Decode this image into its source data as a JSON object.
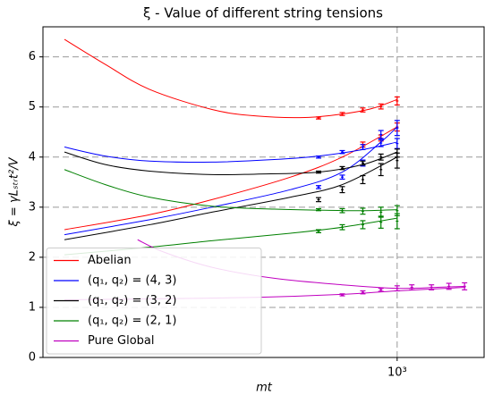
{
  "chart_data": {
    "type": "line",
    "title": "ξ - Value of different string tensions",
    "x_label": "mt",
    "y_label": "ξ = γLₛₜᵣt²/V",
    "xscale": "log",
    "xlim": [
      100,
      1760
    ],
    "xticks": [
      {
        "value": 1000,
        "label": "10³"
      }
    ],
    "ylim": [
      0,
      6.6
    ],
    "yticks": [
      0,
      1,
      2,
      3,
      4,
      5,
      6
    ],
    "grid": true,
    "legend": "lower left",
    "series": [
      {
        "name": "Abelian",
        "color": "#ff0000",
        "x": [
          115,
          150,
          200,
          300,
          400,
          550,
          700,
          850,
          1000
        ],
        "values": [
          6.35,
          5.85,
          5.35,
          4.95,
          4.82,
          4.79,
          4.86,
          4.97,
          5.15
        ]
      },
      {
        "color": "#ff0000",
        "x": [
          115,
          200,
          300,
          500,
          700,
          1000
        ],
        "values": [
          2.55,
          2.85,
          3.15,
          3.6,
          4.0,
          4.6
        ]
      },
      {
        "color": "#ff0000",
        "x": [
          600,
          700,
          800,
          900,
          1000
        ],
        "values": [
          4.78,
          4.86,
          4.94,
          5.01,
          5.12
        ],
        "errors": [
          0.02,
          0.03,
          0.04,
          0.05,
          0.08
        ]
      },
      {
        "color": "#ff0000",
        "x": [
          800,
          900,
          1000
        ],
        "values": [
          4.25,
          4.38,
          4.6
        ],
        "errors": [
          0.05,
          0.06,
          0.08
        ]
      },
      {
        "name": "(q₁, q₂) = (4, 3)",
        "color": "#0000ff",
        "x": [
          115,
          150,
          200,
          300,
          450,
          600,
          800,
          1000
        ],
        "values": [
          4.2,
          4.02,
          3.92,
          3.9,
          3.95,
          4.02,
          4.15,
          4.3
        ]
      },
      {
        "color": "#0000ff",
        "x": [
          115,
          200,
          300,
          500,
          700,
          900,
          1000
        ],
        "values": [
          2.45,
          2.75,
          3.0,
          3.35,
          3.7,
          4.3,
          4.6
        ]
      },
      {
        "color": "#0000ff",
        "x": [
          600,
          700,
          800,
          900,
          1000
        ],
        "values": [
          4.0,
          4.1,
          4.2,
          4.28,
          4.27
        ],
        "errors": [
          0.02,
          0.03,
          0.05,
          0.07,
          0.1
        ]
      },
      {
        "color": "#0000ff",
        "x": [
          600,
          700,
          800,
          900,
          1000
        ],
        "values": [
          3.4,
          3.6,
          3.88,
          4.45,
          4.58
        ],
        "errors": [
          0.03,
          0.04,
          0.06,
          0.08,
          0.15
        ]
      },
      {
        "name": "(q₁, q₂) = (3, 2)",
        "color": "#000000",
        "x": [
          115,
          150,
          200,
          300,
          400,
          600,
          800,
          1000
        ],
        "values": [
          4.1,
          3.85,
          3.72,
          3.65,
          3.66,
          3.7,
          3.85,
          4.1
        ]
      },
      {
        "color": "#000000",
        "x": [
          115,
          200,
          300,
          500,
          700,
          1000
        ],
        "values": [
          2.35,
          2.65,
          2.9,
          3.2,
          3.45,
          4.0
        ]
      },
      {
        "color": "#000000",
        "x": [
          600,
          700,
          800,
          900,
          1000
        ],
        "values": [
          3.7,
          3.78,
          3.88,
          4.0,
          4.08
        ],
        "errors": [
          0.02,
          0.03,
          0.04,
          0.06,
          0.08
        ]
      },
      {
        "color": "#000000",
        "x": [
          600,
          700,
          800,
          900,
          1000
        ],
        "values": [
          3.15,
          3.35,
          3.55,
          3.75,
          3.93
        ],
        "errors": [
          0.04,
          0.06,
          0.08,
          0.12,
          0.15
        ]
      },
      {
        "name": "(q₁, q₂) = (2, 1)",
        "color": "#008000",
        "x": [
          115,
          150,
          200,
          300,
          450,
          600,
          800,
          1000
        ],
        "values": [
          3.75,
          3.45,
          3.2,
          3.02,
          2.96,
          2.94,
          2.93,
          2.95
        ]
      },
      {
        "color": "#008000",
        "x": [
          115,
          200,
          300,
          500,
          700,
          1000
        ],
        "values": [
          2.05,
          2.2,
          2.33,
          2.48,
          2.6,
          2.78
        ]
      },
      {
        "color": "#008000",
        "x": [
          600,
          700,
          800,
          900,
          1000
        ],
        "values": [
          2.95,
          2.93,
          2.92,
          2.9,
          2.93
        ],
        "errors": [
          0.02,
          0.04,
          0.06,
          0.1,
          0.1
        ]
      },
      {
        "color": "#008000",
        "x": [
          600,
          700,
          800,
          900,
          1000
        ],
        "values": [
          2.52,
          2.6,
          2.65,
          2.7,
          2.72
        ],
        "errors": [
          0.03,
          0.05,
          0.08,
          0.12,
          0.15
        ]
      },
      {
        "name": "Pure Global",
        "color": "#c000c0",
        "x": [
          185,
          220,
          300,
          450,
          700,
          1000,
          1300,
          1560
        ],
        "values": [
          2.35,
          2.1,
          1.8,
          1.58,
          1.45,
          1.38,
          1.4,
          1.42
        ]
      },
      {
        "color": "#c000c0",
        "x": [
          115,
          200,
          400,
          700,
          1000,
          1560
        ],
        "values": [
          1.15,
          1.17,
          1.2,
          1.26,
          1.33,
          1.4
        ]
      },
      {
        "color": "#c000c0",
        "x": [
          700,
          800,
          900,
          1000,
          1100,
          1250,
          1400,
          1550
        ],
        "values": [
          1.25,
          1.3,
          1.35,
          1.38,
          1.4,
          1.4,
          1.42,
          1.42
        ],
        "errors": [
          0.02,
          0.03,
          0.03,
          0.05,
          0.05,
          0.05,
          0.06,
          0.07
        ]
      }
    ]
  }
}
